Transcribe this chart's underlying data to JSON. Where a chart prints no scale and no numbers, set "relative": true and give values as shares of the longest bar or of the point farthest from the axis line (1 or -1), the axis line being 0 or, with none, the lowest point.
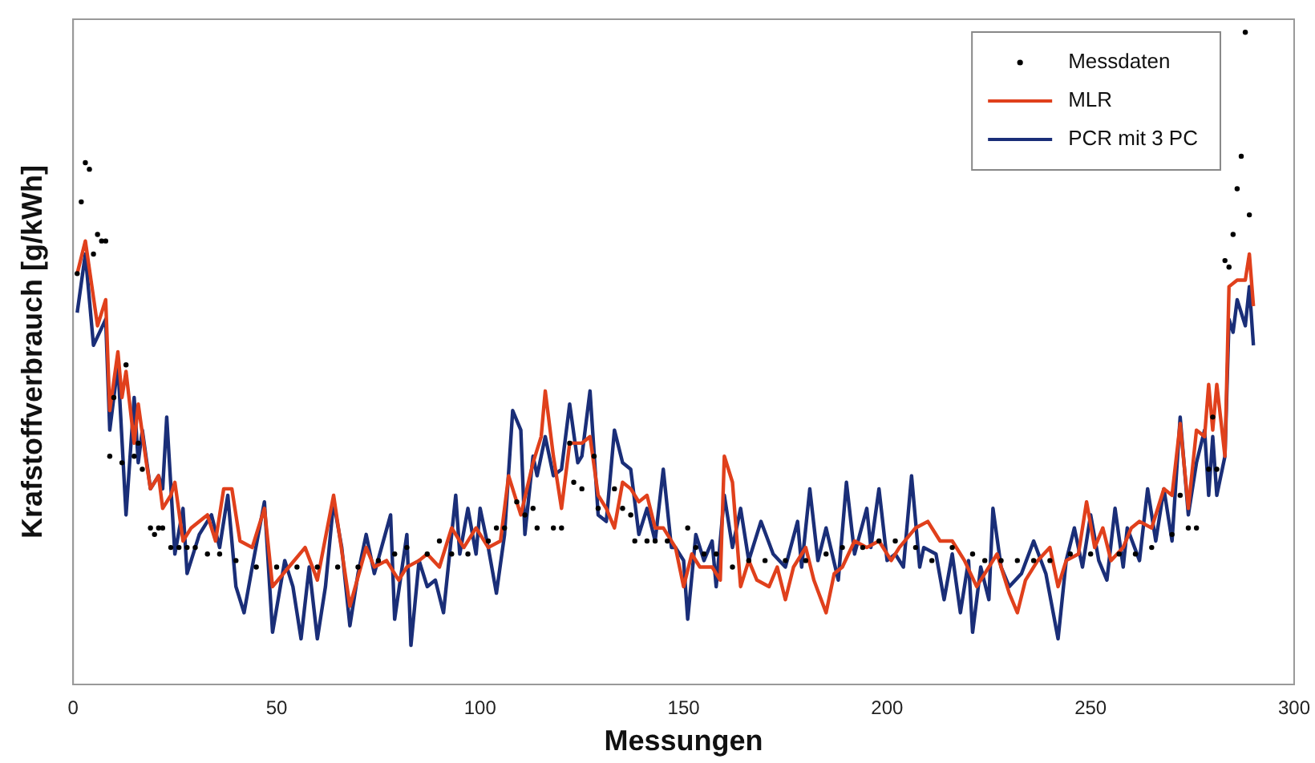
{
  "chart_data": {
    "type": "line",
    "relative": true,
    "xlabel": "Messungen",
    "ylabel": "Krafstoffverbrauch [g/kWh]",
    "xlim": [
      0,
      300
    ],
    "xticks": [
      0,
      50,
      100,
      150,
      200,
      250,
      300
    ],
    "grid": false,
    "legend": "top right",
    "series": [
      {
        "name": "Messdaten",
        "type": "scatter",
        "marker": "circle",
        "color": "#000000",
        "x": [
          1,
          2,
          3,
          4,
          5,
          6,
          7,
          8,
          9,
          10,
          12,
          13,
          15,
          16,
          17,
          19,
          20,
          21,
          22,
          24,
          26,
          28,
          30,
          33,
          36,
          40,
          45,
          50,
          55,
          60,
          65,
          70,
          75,
          79,
          82,
          87,
          90,
          93,
          97,
          102,
          104,
          106,
          109,
          111,
          113,
          114,
          118,
          120,
          122,
          123,
          125,
          128,
          129,
          133,
          135,
          137,
          138,
          141,
          143,
          146,
          151,
          153,
          155,
          158,
          162,
          166,
          170,
          175,
          180,
          185,
          189,
          194,
          198,
          202,
          207,
          211,
          216,
          221,
          224,
          228,
          232,
          236,
          240,
          245,
          250,
          257,
          261,
          265,
          270,
          272,
          274,
          276,
          279,
          280,
          281,
          283,
          284,
          285,
          286,
          287,
          288,
          289
        ],
        "values": [
          0.63,
          0.74,
          0.8,
          0.79,
          0.66,
          0.69,
          0.68,
          0.68,
          0.35,
          0.44,
          0.34,
          0.49,
          0.35,
          0.37,
          0.33,
          0.24,
          0.23,
          0.24,
          0.24,
          0.21,
          0.21,
          0.21,
          0.21,
          0.2,
          0.2,
          0.19,
          0.18,
          0.18,
          0.18,
          0.18,
          0.18,
          0.18,
          0.19,
          0.2,
          0.21,
          0.2,
          0.22,
          0.2,
          0.2,
          0.22,
          0.24,
          0.24,
          0.28,
          0.26,
          0.27,
          0.24,
          0.24,
          0.24,
          0.37,
          0.31,
          0.3,
          0.35,
          0.27,
          0.3,
          0.27,
          0.26,
          0.22,
          0.22,
          0.22,
          0.22,
          0.24,
          0.21,
          0.2,
          0.2,
          0.18,
          0.19,
          0.19,
          0.19,
          0.19,
          0.2,
          0.21,
          0.21,
          0.22,
          0.22,
          0.21,
          0.19,
          0.21,
          0.2,
          0.19,
          0.19,
          0.19,
          0.19,
          0.19,
          0.2,
          0.2,
          0.2,
          0.2,
          0.21,
          0.23,
          0.29,
          0.24,
          0.24,
          0.33,
          0.41,
          0.33,
          0.65,
          0.64,
          0.69,
          0.76,
          0.81,
          1.0,
          0.72
        ]
      },
      {
        "name": "MLR",
        "type": "line",
        "marker": "none",
        "line_style": "solid",
        "color": "#e0401c",
        "x": [
          1,
          3,
          6,
          8,
          9,
          11,
          12,
          13,
          15,
          16,
          18,
          19,
          21,
          22,
          24,
          25,
          27,
          29,
          33,
          35,
          37,
          39,
          41,
          44,
          47,
          49,
          53,
          57,
          60,
          64,
          68,
          72,
          74,
          77,
          80,
          82,
          85,
          87,
          90,
          93,
          96,
          99,
          102,
          105,
          107,
          110,
          113,
          115,
          116,
          118,
          120,
          122,
          125,
          127,
          129,
          131,
          133,
          135,
          137,
          139,
          141,
          143,
          145,
          148,
          150,
          152,
          154,
          157,
          159,
          160,
          162,
          164,
          166,
          168,
          171,
          173,
          175,
          177,
          180,
          182,
          185,
          187,
          189,
          192,
          195,
          198,
          201,
          203,
          207,
          210,
          213,
          216,
          219,
          222,
          224,
          227,
          230,
          232,
          234,
          237,
          240,
          242,
          244,
          247,
          249,
          251,
          253,
          255,
          258,
          260,
          262,
          265,
          268,
          270,
          272,
          274,
          276,
          278,
          279,
          280,
          281,
          283,
          284,
          286,
          288,
          289,
          290
        ],
        "values": [
          0.63,
          0.68,
          0.55,
          0.59,
          0.42,
          0.51,
          0.44,
          0.48,
          0.37,
          0.43,
          0.34,
          0.3,
          0.32,
          0.27,
          0.29,
          0.31,
          0.22,
          0.24,
          0.26,
          0.22,
          0.3,
          0.3,
          0.22,
          0.21,
          0.27,
          0.15,
          0.18,
          0.21,
          0.16,
          0.29,
          0.12,
          0.21,
          0.18,
          0.19,
          0.16,
          0.18,
          0.19,
          0.2,
          0.18,
          0.24,
          0.21,
          0.24,
          0.21,
          0.22,
          0.32,
          0.26,
          0.34,
          0.38,
          0.45,
          0.35,
          0.27,
          0.37,
          0.37,
          0.38,
          0.29,
          0.27,
          0.24,
          0.31,
          0.3,
          0.28,
          0.29,
          0.24,
          0.24,
          0.21,
          0.15,
          0.2,
          0.18,
          0.18,
          0.16,
          0.35,
          0.31,
          0.15,
          0.19,
          0.16,
          0.15,
          0.18,
          0.13,
          0.18,
          0.21,
          0.16,
          0.11,
          0.17,
          0.18,
          0.22,
          0.21,
          0.22,
          0.19,
          0.21,
          0.24,
          0.25,
          0.22,
          0.22,
          0.19,
          0.15,
          0.17,
          0.2,
          0.14,
          0.11,
          0.16,
          0.19,
          0.21,
          0.15,
          0.19,
          0.2,
          0.28,
          0.21,
          0.24,
          0.19,
          0.21,
          0.24,
          0.25,
          0.24,
          0.3,
          0.29,
          0.4,
          0.27,
          0.39,
          0.38,
          0.46,
          0.39,
          0.46,
          0.35,
          0.61,
          0.62,
          0.62,
          0.66,
          0.58
        ]
      },
      {
        "name": "PCR mit 3 PC",
        "type": "line",
        "marker": "none",
        "line_style": "solid",
        "color": "#1a2e78",
        "x": [
          1,
          3,
          5,
          8,
          9,
          11,
          13,
          15,
          16,
          17,
          19,
          21,
          22,
          23,
          25,
          27,
          28,
          31,
          34,
          36,
          38,
          40,
          42,
          44,
          47,
          49,
          52,
          54,
          56,
          58,
          60,
          62,
          64,
          66,
          68,
          70,
          72,
          74,
          78,
          79,
          82,
          83,
          85,
          87,
          89,
          91,
          94,
          95,
          97,
          99,
          100,
          102,
          104,
          106,
          108,
          110,
          111,
          113,
          114,
          116,
          118,
          120,
          122,
          124,
          125,
          127,
          129,
          131,
          133,
          135,
          137,
          139,
          141,
          143,
          145,
          147,
          148,
          150,
          151,
          153,
          155,
          157,
          158,
          160,
          162,
          164,
          166,
          169,
          172,
          175,
          178,
          179,
          181,
          183,
          185,
          188,
          190,
          192,
          195,
          196,
          198,
          200,
          202,
          204,
          206,
          208,
          209,
          212,
          214,
          216,
          218,
          220,
          221,
          223,
          225,
          226,
          228,
          230,
          233,
          236,
          239,
          242,
          244,
          246,
          248,
          250,
          252,
          254,
          256,
          258,
          259,
          262,
          264,
          266,
          268,
          270,
          272,
          274,
          276,
          278,
          279,
          280,
          281,
          283,
          284,
          285,
          286,
          288,
          289,
          290
        ],
        "values": [
          0.57,
          0.66,
          0.52,
          0.56,
          0.39,
          0.49,
          0.26,
          0.44,
          0.34,
          0.39,
          0.3,
          0.32,
          0.3,
          0.41,
          0.2,
          0.27,
          0.17,
          0.23,
          0.26,
          0.21,
          0.29,
          0.15,
          0.11,
          0.18,
          0.28,
          0.08,
          0.19,
          0.15,
          0.07,
          0.18,
          0.07,
          0.15,
          0.28,
          0.21,
          0.09,
          0.17,
          0.23,
          0.17,
          0.26,
          0.1,
          0.23,
          0.06,
          0.19,
          0.15,
          0.16,
          0.11,
          0.29,
          0.2,
          0.27,
          0.2,
          0.27,
          0.21,
          0.14,
          0.23,
          0.42,
          0.39,
          0.23,
          0.35,
          0.32,
          0.38,
          0.32,
          0.33,
          0.43,
          0.34,
          0.35,
          0.45,
          0.26,
          0.25,
          0.39,
          0.34,
          0.33,
          0.23,
          0.27,
          0.22,
          0.33,
          0.21,
          0.21,
          0.19,
          0.1,
          0.23,
          0.19,
          0.22,
          0.15,
          0.29,
          0.21,
          0.27,
          0.19,
          0.25,
          0.2,
          0.18,
          0.25,
          0.18,
          0.3,
          0.19,
          0.24,
          0.16,
          0.31,
          0.2,
          0.27,
          0.21,
          0.3,
          0.19,
          0.2,
          0.18,
          0.32,
          0.18,
          0.21,
          0.2,
          0.13,
          0.2,
          0.11,
          0.19,
          0.08,
          0.18,
          0.13,
          0.27,
          0.18,
          0.15,
          0.17,
          0.22,
          0.17,
          0.07,
          0.19,
          0.24,
          0.18,
          0.26,
          0.19,
          0.16,
          0.27,
          0.18,
          0.24,
          0.19,
          0.3,
          0.22,
          0.3,
          0.22,
          0.41,
          0.26,
          0.34,
          0.39,
          0.29,
          0.38,
          0.29,
          0.35,
          0.56,
          0.54,
          0.59,
          0.55,
          0.61,
          0.52
        ]
      }
    ]
  }
}
